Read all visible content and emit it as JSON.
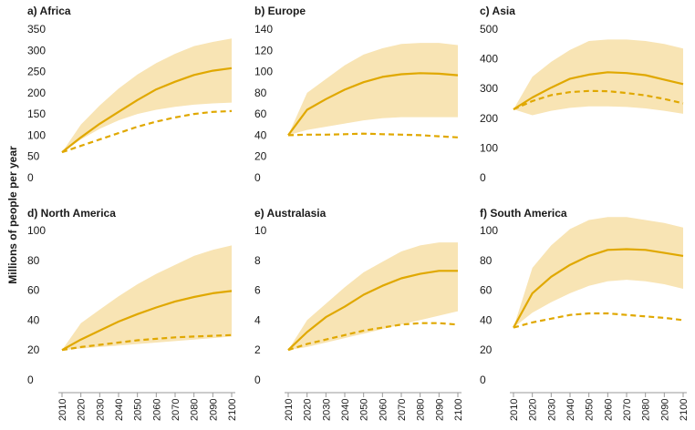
{
  "y_axis_label": "Millions of people per year",
  "colors": {
    "band": "#f8e4b4",
    "line": "#e0a800",
    "axis": "#999999"
  },
  "chart_data": [
    {
      "type": "line",
      "title": "a) Africa",
      "ylim": [
        0,
        350
      ],
      "yticks": [
        0,
        50,
        100,
        150,
        200,
        250,
        300,
        350
      ],
      "x": [
        2010,
        2020,
        2030,
        2040,
        2050,
        2060,
        2070,
        2080,
        2090,
        2100
      ],
      "band_lower": [
        60,
        90,
        115,
        135,
        150,
        160,
        167,
        172,
        175,
        177
      ],
      "band_upper": [
        60,
        125,
        170,
        210,
        243,
        270,
        292,
        310,
        320,
        328
      ],
      "series": [
        {
          "style": "solid",
          "values": [
            60,
            95,
            127,
            155,
            183,
            208,
            226,
            242,
            252,
            258
          ]
        },
        {
          "style": "dashed",
          "values": [
            60,
            75,
            90,
            105,
            120,
            132,
            142,
            150,
            155,
            157
          ]
        }
      ]
    },
    {
      "type": "line",
      "title": "b) Europe",
      "ylim": [
        0,
        140
      ],
      "yticks": [
        0,
        20,
        40,
        60,
        80,
        100,
        120,
        140
      ],
      "x": [
        2010,
        2020,
        2030,
        2040,
        2050,
        2060,
        2070,
        2080,
        2090,
        2100
      ],
      "band_lower": [
        40,
        45,
        48,
        51,
        54,
        56,
        57,
        57,
        57,
        57
      ],
      "band_upper": [
        40,
        80,
        93,
        106,
        116,
        122,
        126,
        127,
        127,
        125
      ],
      "series": [
        {
          "style": "solid",
          "values": [
            40,
            64,
            74,
            83,
            90,
            95,
            97.5,
            98.5,
            98,
            96.5
          ]
        },
        {
          "style": "dashed",
          "values": [
            40,
            40.5,
            40.5,
            41,
            41.5,
            41,
            40.5,
            40,
            39,
            38
          ]
        }
      ]
    },
    {
      "type": "line",
      "title": "c) Asia",
      "ylim": [
        0,
        500
      ],
      "yticks": [
        0,
        100,
        200,
        300,
        400,
        500
      ],
      "x": [
        2010,
        2020,
        2030,
        2040,
        2050,
        2060,
        2070,
        2080,
        2090,
        2100
      ],
      "band_lower": [
        230,
        210,
        225,
        235,
        240,
        240,
        238,
        233,
        225,
        215
      ],
      "band_upper": [
        230,
        340,
        390,
        430,
        460,
        465,
        465,
        460,
        450,
        435
      ],
      "series": [
        {
          "style": "solid",
          "values": [
            230,
            270,
            303,
            333,
            347,
            355,
            352,
            345,
            330,
            315
          ]
        },
        {
          "style": "dashed",
          "values": [
            230,
            258,
            278,
            288,
            292,
            291,
            285,
            277,
            265,
            250
          ]
        }
      ]
    },
    {
      "type": "line",
      "title": "d) North America",
      "ylim": [
        0,
        100
      ],
      "yticks": [
        0,
        20,
        40,
        60,
        80,
        100
      ],
      "x": [
        2010,
        2020,
        2030,
        2040,
        2050,
        2060,
        2070,
        2080,
        2090,
        2100
      ],
      "band_lower": [
        20,
        21,
        22,
        23,
        24,
        25,
        26,
        27,
        28,
        29
      ],
      "band_upper": [
        20,
        38,
        47,
        56,
        64,
        71,
        77,
        83,
        87,
        90
      ],
      "series": [
        {
          "style": "solid",
          "values": [
            20,
            27,
            33,
            39,
            44,
            48.5,
            52.5,
            55.5,
            58,
            59.5
          ]
        },
        {
          "style": "dashed",
          "values": [
            20,
            22,
            23.5,
            25,
            26.5,
            27.5,
            28.5,
            29,
            29.5,
            30
          ]
        }
      ]
    },
    {
      "type": "line",
      "title": "e) Australasia",
      "ylim": [
        0,
        10
      ],
      "yticks": [
        0,
        2,
        4,
        6,
        8,
        10
      ],
      "x": [
        2010,
        2020,
        2030,
        2040,
        2050,
        2060,
        2070,
        2080,
        2090,
        2100
      ],
      "band_lower": [
        2,
        2.2,
        2.5,
        2.8,
        3.1,
        3.4,
        3.7,
        4.0,
        4.3,
        4.6
      ],
      "band_upper": [
        2,
        4.0,
        5.1,
        6.2,
        7.2,
        7.9,
        8.6,
        9.0,
        9.2,
        9.2
      ],
      "series": [
        {
          "style": "solid",
          "values": [
            2,
            3.2,
            4.2,
            4.9,
            5.7,
            6.3,
            6.8,
            7.1,
            7.3,
            7.3
          ]
        },
        {
          "style": "dashed",
          "values": [
            2,
            2.4,
            2.7,
            3.0,
            3.3,
            3.5,
            3.7,
            3.8,
            3.8,
            3.7
          ]
        }
      ]
    },
    {
      "type": "line",
      "title": "f) South America",
      "ylim": [
        0,
        100
      ],
      "yticks": [
        0,
        20,
        40,
        60,
        80,
        100
      ],
      "x": [
        2010,
        2020,
        2030,
        2040,
        2050,
        2060,
        2070,
        2080,
        2090,
        2100
      ],
      "band_lower": [
        35,
        45,
        52,
        58,
        63,
        66,
        67,
        66,
        64,
        61
      ],
      "band_upper": [
        35,
        75,
        90,
        101,
        107,
        109,
        109,
        107,
        105,
        102
      ],
      "series": [
        {
          "style": "solid",
          "values": [
            35,
            58,
            69,
            77,
            83,
            87,
            87.5,
            87,
            85,
            83
          ]
        },
        {
          "style": "dashed",
          "values": [
            35,
            38.5,
            41,
            43.5,
            44.5,
            44.5,
            43.5,
            42.5,
            41.5,
            40
          ]
        }
      ]
    }
  ]
}
